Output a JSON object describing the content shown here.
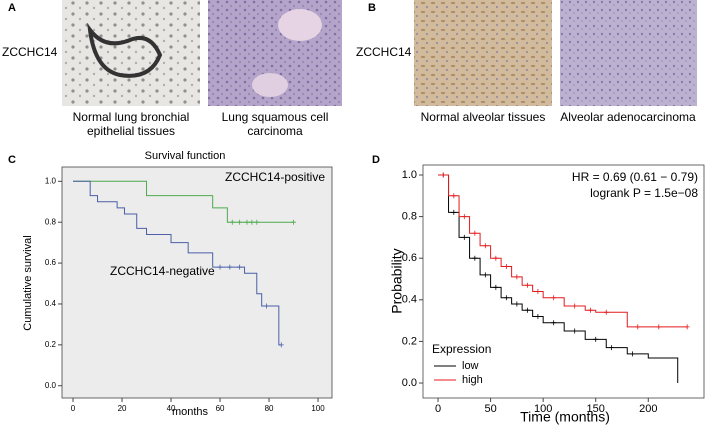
{
  "panels": [
    {
      "label": "A",
      "marker": "ZCCHC14",
      "images": [
        {
          "caption": [
            "Normal lung bronchial",
            "epithelial tissues"
          ]
        },
        {
          "caption": [
            "Lung squamous cell",
            "carcinoma"
          ]
        }
      ]
    },
    {
      "label": "B",
      "marker": "ZCCHC14",
      "images": [
        {
          "caption": [
            "Normal alveolar tissues"
          ]
        },
        {
          "caption": [
            "Alveolar adenocarcinoma"
          ]
        }
      ]
    }
  ],
  "chart_data": [
    {
      "type": "km",
      "panel_label": "C",
      "title": "Survival function",
      "xlabel": "months",
      "ylabel": "Cumulative survival",
      "plot_background": "#ececec",
      "xlim": [
        -4.5,
        105.7
      ],
      "ylim": [
        -0.06,
        1.07
      ],
      "xticks": [
        0,
        20,
        40,
        60,
        80,
        100
      ],
      "yticks": [
        {
          "value": 0,
          "label": "0.0"
        },
        {
          "value": 0.2,
          "label": "0.2"
        },
        {
          "value": 0.4,
          "label": "0.4"
        },
        {
          "value": 0.6,
          "label": "0.6"
        },
        {
          "value": 0.8,
          "label": "0.8"
        },
        {
          "value": 1,
          "label": "1.0"
        }
      ],
      "series": [
        {
          "name": "ZCCHC14-positive",
          "color": "#4daa4d",
          "x": [
            0,
            30,
            57,
            63
          ],
          "values": [
            1,
            0.93,
            0.87,
            0.8
          ],
          "censored": [
            65,
            68,
            71,
            73,
            75,
            90
          ]
        },
        {
          "name": "ZCCHC14-negative",
          "color": "#4a5fa8",
          "x": [
            0,
            7,
            10,
            18,
            21,
            26,
            30,
            40,
            47,
            57,
            70,
            75,
            77,
            84
          ],
          "values": [
            1,
            0.93,
            0.9,
            0.87,
            0.84,
            0.77,
            0.74,
            0.7,
            0.65,
            0.58,
            0.55,
            0.45,
            0.39,
            0.2
          ],
          "censored": [
            60,
            64,
            68,
            79,
            85
          ]
        }
      ]
    },
    {
      "type": "km",
      "panel_label": "D",
      "xlabel": "Time (months)",
      "ylabel": "Probability",
      "plot_background": "#ffffff",
      "annotations": [
        "HR = 0.69 (0.61 − 0.79)",
        "logrank P = 1.5e−08"
      ],
      "legend_title": "Expression",
      "xlim": [
        -14.3,
        253
      ],
      "ylim": [
        -0.072,
        1.048
      ],
      "xticks": [
        0,
        50,
        100,
        150,
        200
      ],
      "yticks": [
        {
          "value": 0,
          "label": "0.0"
        },
        {
          "value": 0.2,
          "label": "0.2"
        },
        {
          "value": 0.4,
          "label": "0.4"
        },
        {
          "value": 0.6,
          "label": "0.6"
        },
        {
          "value": 0.8,
          "label": "0.8"
        },
        {
          "value": 1,
          "label": "1.0"
        }
      ],
      "series": [
        {
          "name": "low",
          "color": "#000000",
          "x": [
            0,
            10,
            20,
            30,
            40,
            50,
            60,
            70,
            80,
            90,
            100,
            120,
            140,
            160,
            180,
            200,
            228
          ],
          "values": [
            1,
            0.82,
            0.7,
            0.6,
            0.52,
            0.46,
            0.41,
            0.38,
            0.35,
            0.32,
            0.29,
            0.25,
            0.21,
            0.17,
            0.14,
            0.12,
            0
          ],
          "censored": [
            5,
            15,
            25,
            35,
            45,
            55,
            65,
            75,
            85,
            95,
            110,
            130,
            150,
            165,
            185
          ]
        },
        {
          "name": "high",
          "color": "#e41a1c",
          "x": [
            0,
            10,
            20,
            30,
            40,
            50,
            60,
            70,
            80,
            90,
            100,
            120,
            140,
            150,
            180
          ],
          "values": [
            1,
            0.9,
            0.8,
            0.72,
            0.66,
            0.6,
            0.56,
            0.51,
            0.47,
            0.44,
            0.41,
            0.37,
            0.35,
            0.34,
            0.27
          ],
          "censored": [
            5,
            15,
            25,
            35,
            45,
            55,
            65,
            75,
            85,
            95,
            110,
            130,
            145,
            160,
            190,
            210,
            237
          ]
        }
      ]
    }
  ]
}
